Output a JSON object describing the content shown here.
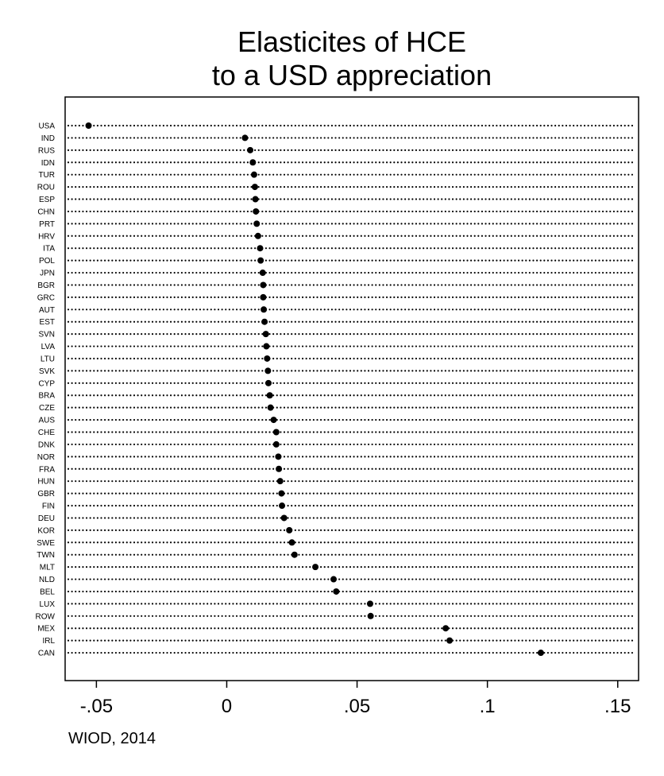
{
  "chart_data": {
    "type": "scatter",
    "subtype": "dot-plot",
    "title": [
      "Elasticites of HCE",
      "to a USD appreciation"
    ],
    "note": "WIOD, 2014",
    "xlabel": "",
    "ylabel": "",
    "xlim": [
      -0.062,
      0.158
    ],
    "xticks": [
      -0.05,
      0,
      0.05,
      0.1,
      0.15
    ],
    "xtick_labels": [
      "-.05",
      "0",
      ".05",
      ".1",
      ".15"
    ],
    "grid": false,
    "legend": "none",
    "marker_color": "#000000",
    "categories": [
      "USA",
      "IND",
      "RUS",
      "IDN",
      "TUR",
      "ROU",
      "ESP",
      "CHN",
      "PRT",
      "HRV",
      "ITA",
      "POL",
      "JPN",
      "BGR",
      "GRC",
      "AUT",
      "EST",
      "SVN",
      "LVA",
      "LTU",
      "SVK",
      "CYP",
      "BRA",
      "CZE",
      "AUS",
      "CHE",
      "DNK",
      "NOR",
      "FRA",
      "HUN",
      "GBR",
      "FIN",
      "DEU",
      "KOR",
      "SWE",
      "TWN",
      "MLT",
      "NLD",
      "BEL",
      "LUX",
      "ROW",
      "MEX",
      "IRL",
      "CAN"
    ],
    "values": [
      -0.053,
      0.007,
      0.009,
      0.01,
      0.0105,
      0.0108,
      0.011,
      0.0112,
      0.0115,
      0.012,
      0.0128,
      0.013,
      0.0138,
      0.014,
      0.014,
      0.0142,
      0.0145,
      0.015,
      0.0152,
      0.0155,
      0.0158,
      0.016,
      0.0165,
      0.0168,
      0.018,
      0.019,
      0.019,
      0.0198,
      0.02,
      0.0205,
      0.021,
      0.0212,
      0.022,
      0.024,
      0.025,
      0.026,
      0.034,
      0.041,
      0.042,
      0.055,
      0.0552,
      0.084,
      0.0855,
      0.1205
    ]
  }
}
